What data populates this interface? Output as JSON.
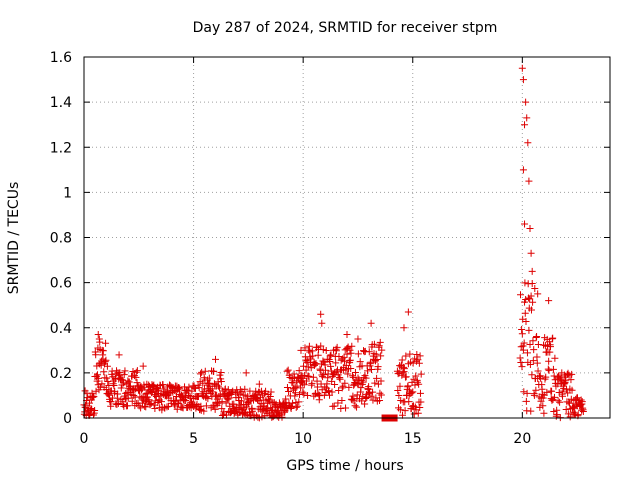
{
  "chart_data": {
    "type": "scatter",
    "title": "Day 287 of 2024, SRMTID for receiver stpm",
    "xlabel": "GPS time / hours",
    "ylabel": "SRMTID / TECUs",
    "xlim": [
      0,
      24
    ],
    "ylim": [
      0,
      1.6
    ],
    "xticks": [
      0,
      5,
      10,
      15,
      20
    ],
    "yticks": [
      0,
      0.2,
      0.4,
      0.6,
      0.8,
      1,
      1.2,
      1.4,
      1.6
    ],
    "xtick_labels": [
      "0",
      "5",
      "10",
      "15",
      "20"
    ],
    "ytick_labels": [
      "0",
      "0.2",
      "0.4",
      "0.6",
      "0.8",
      "1",
      "1.2",
      "1.4",
      "1.6"
    ],
    "grid": true,
    "marker": "+",
    "series": [
      {
        "name": "stpm",
        "color": "#dd0000",
        "segments": [
          {
            "t0": 0.0,
            "t1": 0.5,
            "base": 0.06,
            "amp": 0.05,
            "spikes": [
              [
                0.05,
                0.12
              ]
            ]
          },
          {
            "t0": 0.5,
            "t1": 1.1,
            "base": 0.22,
            "amp": 0.12,
            "spikes": [
              [
                0.65,
                0.37
              ],
              [
                0.7,
                0.35
              ]
            ]
          },
          {
            "t0": 1.1,
            "t1": 2.5,
            "base": 0.13,
            "amp": 0.08,
            "spikes": [
              [
                1.6,
                0.28
              ]
            ]
          },
          {
            "t0": 2.5,
            "t1": 5.3,
            "base": 0.09,
            "amp": 0.06,
            "spikes": [
              [
                2.7,
                0.23
              ]
            ]
          },
          {
            "t0": 5.3,
            "t1": 6.3,
            "base": 0.12,
            "amp": 0.09,
            "spikes": [
              [
                6.0,
                0.26
              ]
            ]
          },
          {
            "t0": 6.3,
            "t1": 7.6,
            "base": 0.07,
            "amp": 0.06,
            "spikes": [
              [
                7.4,
                0.2
              ]
            ]
          },
          {
            "t0": 7.6,
            "t1": 8.6,
            "base": 0.06,
            "amp": 0.06,
            "spikes": [
              [
                8.0,
                0.15
              ]
            ]
          },
          {
            "t0": 8.6,
            "t1": 9.2,
            "base": 0.03,
            "amp": 0.04,
            "spikes": []
          },
          {
            "t0": 9.2,
            "t1": 10.0,
            "base": 0.12,
            "amp": 0.1,
            "spikes": [
              [
                9.9,
                0.3
              ]
            ]
          },
          {
            "t0": 10.0,
            "t1": 11.3,
            "base": 0.2,
            "amp": 0.12,
            "spikes": [
              [
                10.8,
                0.46
              ],
              [
                10.85,
                0.42
              ]
            ]
          },
          {
            "t0": 11.3,
            "t1": 13.0,
            "base": 0.18,
            "amp": 0.14,
            "spikes": [
              [
                12.0,
                0.37
              ],
              [
                12.5,
                0.35
              ]
            ]
          },
          {
            "t0": 13.0,
            "t1": 13.6,
            "base": 0.2,
            "amp": 0.14,
            "spikes": [
              [
                13.1,
                0.42
              ]
            ]
          },
          {
            "t0": 13.6,
            "t1": 14.3,
            "base": 0.0,
            "amp": 0.0,
            "spikes": []
          },
          {
            "t0": 14.3,
            "t1": 15.4,
            "base": 0.15,
            "amp": 0.14,
            "spikes": [
              [
                14.8,
                0.47
              ],
              [
                14.6,
                0.4
              ]
            ]
          },
          {
            "t0": 19.9,
            "t1": 20.6,
            "base": 0.3,
            "amp": 0.3,
            "spikes": [
              [
                20.0,
                1.55
              ],
              [
                20.05,
                1.5
              ],
              [
                20.15,
                1.4
              ],
              [
                20.1,
                1.3
              ],
              [
                20.2,
                1.33
              ],
              [
                20.25,
                1.22
              ],
              [
                20.3,
                1.05
              ],
              [
                20.05,
                1.1
              ],
              [
                20.1,
                0.86
              ],
              [
                20.35,
                0.84
              ],
              [
                20.4,
                0.73
              ],
              [
                20.45,
                0.65
              ]
            ]
          },
          {
            "t0": 20.6,
            "t1": 21.5,
            "base": 0.2,
            "amp": 0.18,
            "spikes": [
              [
                20.7,
                0.55
              ],
              [
                21.2,
                0.52
              ]
            ]
          },
          {
            "t0": 21.5,
            "t1": 22.3,
            "base": 0.1,
            "amp": 0.1,
            "spikes": [
              [
                21.8,
                0.2
              ]
            ]
          },
          {
            "t0": 22.3,
            "t1": 22.8,
            "base": 0.05,
            "amp": 0.05,
            "spikes": []
          }
        ]
      }
    ]
  }
}
